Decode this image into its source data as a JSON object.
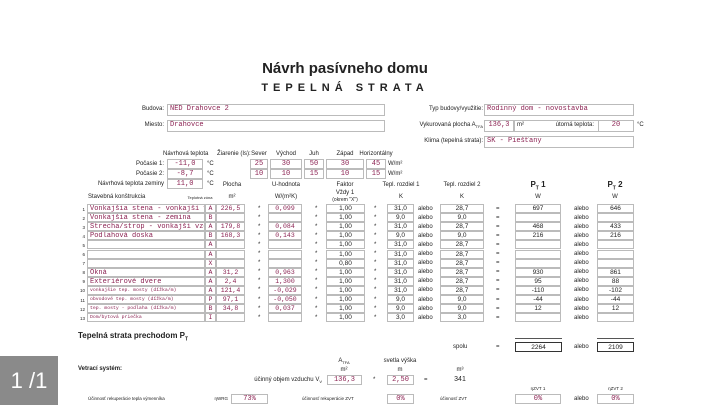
{
  "title": "Návrh pasívneho domu",
  "subtitle": "TEPELNÁ STRATA",
  "building": {
    "budova_label": "Budova:",
    "budova": "NED Drahovce 2",
    "miesto_label": "Miesto:",
    "miesto": "Drahovce",
    "typ_label": "Typ budovy/využitie:",
    "typ": "Rodinný dom - novostavba",
    "plocha_label": "Vykurovaná plocha A",
    "plocha_sub": "TFA",
    "plocha": "136,3",
    "plocha_unit": "m²",
    "teplota_label": "útorná teplota:",
    "teplota": "20",
    "teplota_unit": "°C",
    "klima_label": "Klima (tepelná strata):",
    "klima": "SK - Piešťany"
  },
  "weather": {
    "header": "Návrhová teplota",
    "rad_label": "Žiarenie (Is):",
    "dirs": [
      "Sever",
      "Východ",
      "Juh",
      "Západ",
      "Horizontálny"
    ],
    "p1_label": "Počasie 1:",
    "p1": "-11,0",
    "p2_label": "Počasie 2:",
    "p2": "-8,7",
    "zem_label": "Návrhová teplota zeminy",
    "zem": "11,0",
    "unit": "°C",
    "rad_unit": "W/m²",
    "rad1": [
      "25",
      "30",
      "50",
      "30",
      "45"
    ],
    "rad2": [
      "10",
      "10",
      "15",
      "10",
      "15"
    ]
  },
  "headers": {
    "plocha": "Plocha",
    "u": "U-hodnota",
    "faktor": "Faktor",
    "t1": "Tepl. rozdiel 1",
    "t2": "Tepl. rozdiel 2",
    "pt1": "P",
    "pt2": "P",
    "pt_sub": "T",
    "pt1_n": " 1",
    "pt2_n": " 2",
    "konstr": "Stavebná konštrukcia",
    "zona": "Teplotná zóna",
    "m2": "m²",
    "wm2k": "W/(m²K)",
    "vzdy": "Vždy 1",
    "okrem": "(okrem \"X\")",
    "k": "K",
    "w": "W"
  },
  "ops": {
    "times": "*",
    "or": "alebo",
    "eq": "="
  },
  "rows": [
    {
      "n": "1",
      "name": "Vonkajšia stena - vonkajší v",
      "zone": "A",
      "area": "226,5",
      "u": "0,099",
      "f": "1,00",
      "t1": "31,0",
      "t2": "28,7",
      "p1": "697",
      "p2": "646"
    },
    {
      "n": "2",
      "name": "Vonkajšia stena - zemina",
      "zone": "B",
      "area": "",
      "u": "",
      "f": "1,00",
      "t1": "9,0",
      "t2": "9,0",
      "p1": "",
      "p2": ""
    },
    {
      "n": "3",
      "name": "Strecha/strop - vonkajší vzd",
      "zone": "A",
      "area": "179,8",
      "u": "0,084",
      "f": "1,00",
      "t1": "31,0",
      "t2": "28,7",
      "p1": "468",
      "p2": "433"
    },
    {
      "n": "4",
      "name": "Podlahová doska",
      "zone": "B",
      "area": "168,3",
      "u": "0,143",
      "f": "1,00",
      "t1": "9,0",
      "t2": "9,0",
      "p1": "216",
      "p2": "216"
    },
    {
      "n": "5",
      "name": "",
      "zone": "A",
      "area": "",
      "u": "",
      "f": "1,00",
      "t1": "31,0",
      "t2": "28,7",
      "p1": "",
      "p2": ""
    },
    {
      "n": "6",
      "name": "",
      "zone": "A",
      "area": "",
      "u": "",
      "f": "1,00",
      "t1": "31,0",
      "t2": "28,7",
      "p1": "",
      "p2": ""
    },
    {
      "n": "7",
      "name": "",
      "zone": "X",
      "area": "",
      "u": "",
      "f": "0,80",
      "t1": "31,0",
      "t2": "28,7",
      "p1": "",
      "p2": ""
    },
    {
      "n": "8",
      "name": "Okná",
      "zone": "A",
      "area": "31,2",
      "u": "0,963",
      "f": "1,00",
      "t1": "31,0",
      "t2": "28,7",
      "p1": "930",
      "p2": "861"
    },
    {
      "n": "9",
      "name": "Exteriérové dvere",
      "zone": "A",
      "area": "2,4",
      "u": "1,300",
      "f": "1,00",
      "t1": "31,0",
      "t2": "28,7",
      "p1": "95",
      "p2": "88"
    },
    {
      "n": "10",
      "name": "vonkajšie tep. mosty (dĺžka/m)",
      "zone": "A",
      "area": "121,4",
      "u": "-0,029",
      "f": "1,00",
      "t1": "31,0",
      "t2": "28,7",
      "p1": "-110",
      "p2": "-102"
    },
    {
      "n": "11",
      "name": "obvodové tep. mosty (dĺžka/m)",
      "zone": "P",
      "area": "97,1",
      "u": "-0,050",
      "f": "1,00",
      "t1": "9,0",
      "t2": "9,0",
      "p1": "-44",
      "p2": "-44"
    },
    {
      "n": "12",
      "name": "tep. mosty - podlaha (dĺžka/m)",
      "zone": "B",
      "area": "34,8",
      "u": "0,037",
      "f": "1,00",
      "t1": "9,0",
      "t2": "9,0",
      "p1": "12",
      "p2": "12"
    },
    {
      "n": "13",
      "name": "Dom/bytová priečka",
      "zone": "I",
      "area": "",
      "u": "",
      "f": "1,00",
      "t1": "3,0",
      "t2": "3,0",
      "p1": "",
      "p2": ""
    }
  ],
  "total": {
    "title": "Tepelná strata prechodom P",
    "title_sub": "T",
    "spolu": "spolu",
    "p1": "2264",
    "p2": "2109"
  },
  "vent": {
    "title": "Vetrací systém:",
    "atfa": "A",
    "atfa_sub": "TFA",
    "vyska": "svetla výška",
    "m2": "m²",
    "m": "m",
    "m3": "m³",
    "objem_label": "účinný objem vzduchu V",
    "objem_sub": "V",
    "area": "136,3",
    "height": "2,50",
    "volume": "341",
    "wrg_label": "Účinnosť rekuperácie tepla výmenníka",
    "eta_wrg": "ηWRG",
    "wrg": "73%",
    "zvt_rek_label": "účinnosť rekuperácie ZVT",
    "zvt_rek": "0%",
    "zvt_label": "účinnosť ZVT",
    "eta1": "ηZVT 1",
    "eta2": "ηZVT 2",
    "zvt1": "0%",
    "zvt2": "0%"
  },
  "pager": {
    "text": "1 /1"
  },
  "colors": {
    "input_text": "#8b2252",
    "border": "#bbbbbb",
    "pager_bg": "#8a8a8a"
  }
}
